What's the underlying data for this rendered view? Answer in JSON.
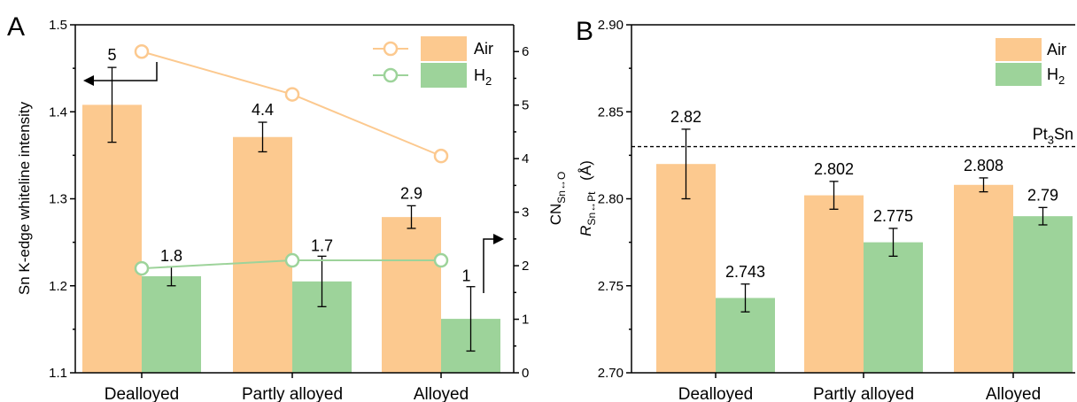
{
  "chart_data": [
    {
      "panel": "A",
      "type": "bar",
      "categories": [
        "Dealloyed",
        "Partly alloyed",
        "Alloyed"
      ],
      "ylabel": "Sn K-edge whiteline intensity",
      "ylim": [
        1.1,
        1.5
      ],
      "yticks": [
        "1.1",
        "1.2",
        "1.3",
        "1.4",
        "1.5"
      ],
      "y2label_main": "CN",
      "y2label_sub": "Sn↔O",
      "y2lim": [
        0,
        6.5
      ],
      "y2ticks": [
        "0",
        "1",
        "2",
        "3",
        "4",
        "5",
        "6"
      ],
      "legend_position": "top-right",
      "series": [
        {
          "name": "Air",
          "name_sub": "",
          "color": "#fcc98f",
          "values": [
            1.408,
            1.371,
            1.279
          ],
          "errors": [
            0.043,
            0.017,
            0.013
          ]
        },
        {
          "name": "H",
          "name_sub": "2",
          "color": "#9dd39a",
          "values": [
            1.211,
            1.205,
            1.162
          ],
          "errors": [
            0.011,
            0.029,
            0.037
          ]
        }
      ],
      "cn_series": [
        {
          "name": "Air",
          "color": "#fcc98f",
          "values": [
            6.0,
            5.2,
            4.05
          ]
        },
        {
          "name": "H2",
          "color": "#9dd39a",
          "values": [
            1.95,
            2.1,
            2.1
          ]
        }
      ],
      "cn_labels": [
        {
          "series": "Air",
          "texts": [
            "5",
            "4.4",
            "2.9"
          ]
        },
        {
          "series": "H2",
          "texts": [
            "1.8",
            "1.7",
            "1"
          ]
        }
      ]
    },
    {
      "panel": "B",
      "type": "bar",
      "categories": [
        "Dealloyed",
        "Partly alloyed",
        "Alloyed"
      ],
      "ylabel_main": "R",
      "ylabel_sub": "Sn↔Pt",
      "ylabel_unit": "(Å)",
      "ylim": [
        2.7,
        2.9
      ],
      "yticks": [
        "2.70",
        "2.75",
        "2.80",
        "2.85",
        "2.90"
      ],
      "legend_position": "top-right",
      "reference_line": {
        "value": 2.83,
        "label_main": "Pt",
        "label_sub": "3",
        "label_tail": "Sn"
      },
      "series": [
        {
          "name": "Air",
          "name_sub": "",
          "color": "#fcc98f",
          "values": [
            2.82,
            2.802,
            2.808
          ],
          "errors": [
            0.02,
            0.008,
            0.004
          ],
          "labels": [
            "2.82",
            "2.802",
            "2.808"
          ]
        },
        {
          "name": "H",
          "name_sub": "2",
          "color": "#9dd39a",
          "values": [
            2.743,
            2.775,
            2.79
          ],
          "errors": [
            0.008,
            0.008,
            0.005
          ],
          "labels": [
            "2.743",
            "2.775",
            "2.79"
          ]
        }
      ]
    }
  ]
}
